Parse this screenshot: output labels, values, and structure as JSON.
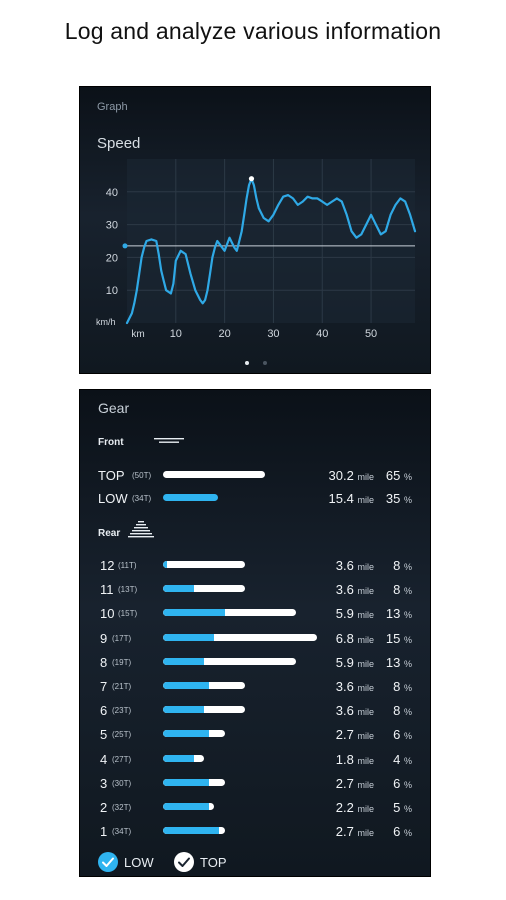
{
  "headline": "Log and analyze various information",
  "graph_panel": {
    "label": "Graph",
    "chart_title": "Speed",
    "pager": {
      "pages": 2,
      "active": 0
    }
  },
  "chart_data": {
    "type": "line",
    "title": "Speed",
    "xlabel": "km",
    "ylabel": "km/h",
    "xticks": [
      10,
      20,
      30,
      40,
      50
    ],
    "yticks": [
      10,
      20,
      30,
      40
    ],
    "xlim": [
      0,
      59
    ],
    "ylim": [
      0,
      50
    ],
    "average": 23.5,
    "max_point": {
      "x": 25.5,
      "y": 44
    },
    "series": [
      {
        "color": "#2fa9e6",
        "x": [
          0,
          1,
          1.5,
          2,
          2.5,
          3,
          3.5,
          4,
          5,
          6,
          6.5,
          7,
          7.5,
          8,
          9,
          9.5,
          10,
          11,
          12,
          13,
          14,
          15,
          15.5,
          16,
          16.5,
          17,
          17.5,
          18,
          18.5,
          19,
          20,
          21,
          22,
          22.5,
          23,
          23.5,
          24,
          24.5,
          25,
          25.5,
          26,
          26.5,
          27,
          28,
          29,
          30,
          31,
          32,
          33,
          34,
          35,
          36,
          37,
          38,
          39,
          40,
          41,
          42,
          43,
          44,
          45,
          46,
          47,
          48,
          49,
          50,
          51,
          52,
          53,
          54,
          55,
          56,
          57,
          58,
          59
        ],
        "y": [
          0,
          3,
          6,
          10,
          15,
          20,
          23,
          25,
          25.5,
          25,
          21,
          16,
          13,
          10,
          9,
          12,
          19,
          22,
          21,
          15,
          10,
          7,
          6,
          7,
          10,
          15,
          20,
          23,
          25,
          24,
          22,
          26,
          23,
          22,
          25,
          28,
          33,
          38,
          42,
          44,
          42,
          38,
          35,
          32,
          31,
          33,
          36,
          38.5,
          39,
          38,
          36,
          37,
          38.5,
          38,
          38,
          37,
          36,
          37,
          38,
          37,
          33,
          28,
          26,
          27,
          30,
          33,
          30,
          27,
          28,
          33,
          36,
          38,
          37,
          33,
          28
        ]
      }
    ]
  },
  "gear_panel": {
    "title": "Gear",
    "legend": {
      "low": "LOW",
      "top": "TOP"
    },
    "front": {
      "label": "Front",
      "rows": [
        {
          "gear": "TOP",
          "teeth": "(50T)",
          "distance": "30.2",
          "unit": "mile",
          "percent": "65",
          "pct_sign": "%",
          "share": 0.65,
          "low_share": 0,
          "kind": "top"
        },
        {
          "gear": "LOW",
          "teeth": "(34T)",
          "distance": "15.4",
          "unit": "mile",
          "percent": "35",
          "pct_sign": "%",
          "share": 0.35,
          "low_share": 0.35,
          "kind": "low"
        }
      ]
    },
    "rear": {
      "label": "Rear",
      "rows": [
        {
          "gear": "12",
          "teeth": "(11T)",
          "distance": "3.6",
          "unit": "mile",
          "percent": "8",
          "pct_sign": "%",
          "share": 0.08,
          "low_share": 0.004
        },
        {
          "gear": "11",
          "teeth": "(13T)",
          "distance": "3.6",
          "unit": "mile",
          "percent": "8",
          "pct_sign": "%",
          "share": 0.08,
          "low_share": 0.03
        },
        {
          "gear": "10",
          "teeth": "(15T)",
          "distance": "5.9",
          "unit": "mile",
          "percent": "13",
          "pct_sign": "%",
          "share": 0.13,
          "low_share": 0.06
        },
        {
          "gear": "9",
          "teeth": "(17T)",
          "distance": "6.8",
          "unit": "mile",
          "percent": "15",
          "pct_sign": "%",
          "share": 0.15,
          "low_share": 0.05
        },
        {
          "gear": "8",
          "teeth": "(19T)",
          "distance": "5.9",
          "unit": "mile",
          "percent": "13",
          "pct_sign": "%",
          "share": 0.13,
          "low_share": 0.04
        },
        {
          "gear": "7",
          "teeth": "(21T)",
          "distance": "3.6",
          "unit": "mile",
          "percent": "8",
          "pct_sign": "%",
          "share": 0.08,
          "low_share": 0.045
        },
        {
          "gear": "6",
          "teeth": "(23T)",
          "distance": "3.6",
          "unit": "mile",
          "percent": "8",
          "pct_sign": "%",
          "share": 0.08,
          "low_share": 0.04
        },
        {
          "gear": "5",
          "teeth": "(25T)",
          "distance": "2.7",
          "unit": "mile",
          "percent": "6",
          "pct_sign": "%",
          "share": 0.06,
          "low_share": 0.045
        },
        {
          "gear": "4",
          "teeth": "(27T)",
          "distance": "1.8",
          "unit": "mile",
          "percent": "4",
          "pct_sign": "%",
          "share": 0.04,
          "low_share": 0.03
        },
        {
          "gear": "3",
          "teeth": "(30T)",
          "distance": "2.7",
          "unit": "mile",
          "percent": "6",
          "pct_sign": "%",
          "share": 0.06,
          "low_share": 0.045
        },
        {
          "gear": "2",
          "teeth": "(32T)",
          "distance": "2.2",
          "unit": "mile",
          "percent": "5",
          "pct_sign": "%",
          "share": 0.05,
          "low_share": 0.045
        },
        {
          "gear": "1",
          "teeth": "(34T)",
          "distance": "2.7",
          "unit": "mile",
          "percent": "6",
          "pct_sign": "%",
          "share": 0.06,
          "low_share": 0.055
        }
      ]
    },
    "colors": {
      "low": "#2fb4f0",
      "top": "#ffffff"
    }
  }
}
